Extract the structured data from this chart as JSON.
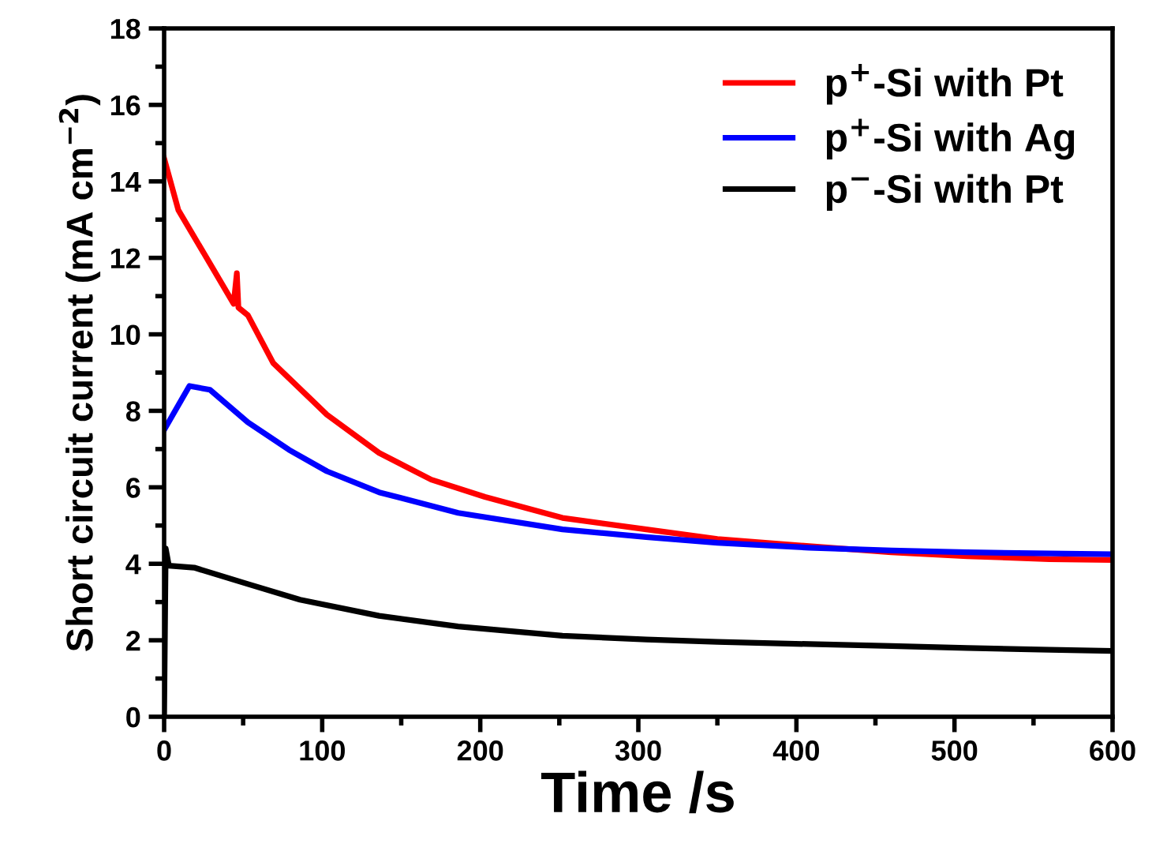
{
  "chart_data": {
    "type": "line",
    "xlabel": "Time /s",
    "ylabel": "Short circuit current (mA cm$^{−2}$)",
    "xlim": [
      0,
      600
    ],
    "xticks": [
      0,
      100,
      200,
      300,
      400,
      500,
      600
    ],
    "ylim": [
      0,
      18
    ],
    "yticks": [
      0,
      2,
      4,
      6,
      8,
      10,
      12,
      14,
      16,
      18
    ],
    "grid": false,
    "legend": "top right",
    "marker": "none",
    "line_style": "solid",
    "series": [
      {
        "name": "p$^{+}$-Si with Pt",
        "color": "#ff0000",
        "x": [
          0,
          9,
          29,
          44,
          46,
          47,
          53,
          69,
          103,
          136,
          169,
          203,
          252,
          305,
          350,
          408,
          460,
          508,
          560,
          600
        ],
        "values": [
          14.6,
          13.25,
          11.85,
          10.8,
          11.6,
          10.7,
          10.5,
          9.25,
          7.9,
          6.9,
          6.2,
          5.75,
          5.2,
          4.9,
          4.65,
          4.46,
          4.3,
          4.2,
          4.12,
          4.1
        ]
      },
      {
        "name": "p$^{+}$-Si with Ag",
        "color": "#0000ff",
        "x": [
          0,
          16,
          29,
          53,
          79,
          103,
          136,
          186,
          252,
          305,
          350,
          408,
          460,
          508,
          560,
          600
        ],
        "values": [
          7.5,
          8.65,
          8.55,
          7.7,
          6.98,
          6.42,
          5.87,
          5.33,
          4.9,
          4.7,
          4.55,
          4.42,
          4.35,
          4.3,
          4.27,
          4.25
        ]
      },
      {
        "name": "p$^{−}$-Si with Pt",
        "color": "#000000",
        "x": [
          0,
          1,
          3,
          19,
          53,
          86,
          136,
          186,
          252,
          305,
          350,
          408,
          460,
          508,
          560,
          600
        ],
        "values": [
          0,
          4.4,
          3.95,
          3.9,
          3.47,
          3.06,
          2.64,
          2.36,
          2.12,
          2.02,
          1.96,
          1.9,
          1.85,
          1.8,
          1.75,
          1.72
        ]
      }
    ]
  }
}
